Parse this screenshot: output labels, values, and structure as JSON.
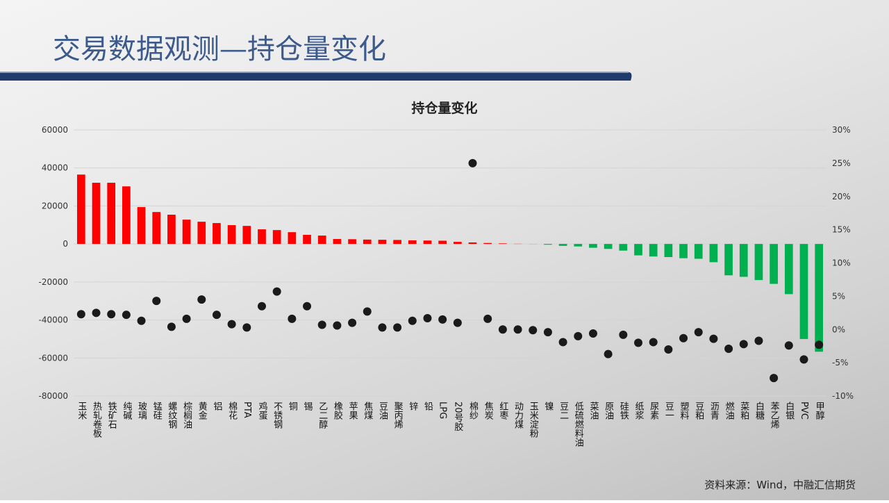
{
  "slide": {
    "title": "交易数据观测—持仓量变化",
    "source": "资料来源：Wind，中融汇信期货"
  },
  "chart_data": {
    "type": "bar",
    "title": "持仓量变化",
    "categories": [
      "玉米",
      "热轧卷板",
      "铁矿石",
      "纯碱",
      "玻璃",
      "锰硅",
      "螺纹钢",
      "棕榈油",
      "黄金",
      "铝",
      "棉花",
      "PTA",
      "鸡蛋",
      "不锈钢",
      "铜",
      "锡",
      "乙二醇",
      "橡胶",
      "苹果",
      "焦煤",
      "豆油",
      "聚丙烯",
      "锌",
      "铅",
      "LPG",
      "20号胶",
      "棉纱",
      "焦炭",
      "红枣",
      "动力煤",
      "玉米淀粉",
      "镍",
      "豆二",
      "低硫燃料油",
      "菜油",
      "原油",
      "硅铁",
      "纸浆",
      "尿素",
      "豆一",
      "塑料",
      "豆粕",
      "沥青",
      "燃油",
      "菜粕",
      "白糖",
      "苯乙烯",
      "白银",
      "PVC",
      "甲醇"
    ],
    "series": [
      {
        "type": "bar",
        "color": "#ff0000",
        "negative_color": "#00b050",
        "values": [
          36500,
          32200,
          32200,
          30300,
          19400,
          16800,
          15400,
          12800,
          11700,
          11000,
          9900,
          9500,
          7700,
          7300,
          6200,
          4800,
          4400,
          2600,
          2500,
          2300,
          2200,
          2100,
          1900,
          1800,
          1700,
          1100,
          800,
          500,
          300,
          100,
          50,
          -400,
          -1000,
          -1300,
          -2000,
          -2600,
          -3500,
          -6000,
          -6600,
          -6900,
          -7500,
          -7800,
          -9600,
          -16500,
          -17300,
          -19000,
          -21000,
          -26400,
          -50000,
          -56700
        ]
      },
      {
        "type": "scatter",
        "axis": "y2",
        "color": "#1a1a1a",
        "values": [
          2.3,
          2.5,
          2.3,
          2.2,
          1.3,
          4.3,
          0.4,
          1.6,
          4.5,
          2.2,
          0.8,
          0.3,
          3.5,
          5.7,
          1.6,
          3.5,
          0.7,
          0.6,
          1.0,
          2.7,
          0.3,
          0.3,
          1.3,
          1.7,
          1.5,
          1.0,
          25.0,
          1.6,
          0.0,
          0.0,
          -0.1,
          -0.4,
          -1.9,
          -1.0,
          -0.6,
          -3.7,
          -0.8,
          -2.0,
          -1.9,
          -3.0,
          -1.3,
          -0.4,
          -1.4,
          -2.9,
          -2.2,
          -1.7,
          -7.3,
          -2.4,
          -4.5,
          -2.3
        ]
      }
    ],
    "ylim": [
      -80000,
      60000
    ],
    "yticks": [
      -80000,
      -60000,
      -40000,
      -20000,
      0,
      20000,
      40000,
      60000
    ],
    "y2lim": [
      -10,
      30
    ],
    "y2ticks": [
      {
        "value": -10,
        "label": "-10%"
      },
      {
        "value": -5,
        "label": "-5%"
      },
      {
        "value": 0,
        "label": "0%"
      },
      {
        "value": 5,
        "label": "5%"
      },
      {
        "value": 10,
        "label": "10%"
      },
      {
        "value": 15,
        "label": "15%"
      },
      {
        "value": 20,
        "label": "20%"
      },
      {
        "value": 25,
        "label": "25%"
      },
      {
        "value": 30,
        "label": "30%"
      }
    ],
    "grid": true
  }
}
